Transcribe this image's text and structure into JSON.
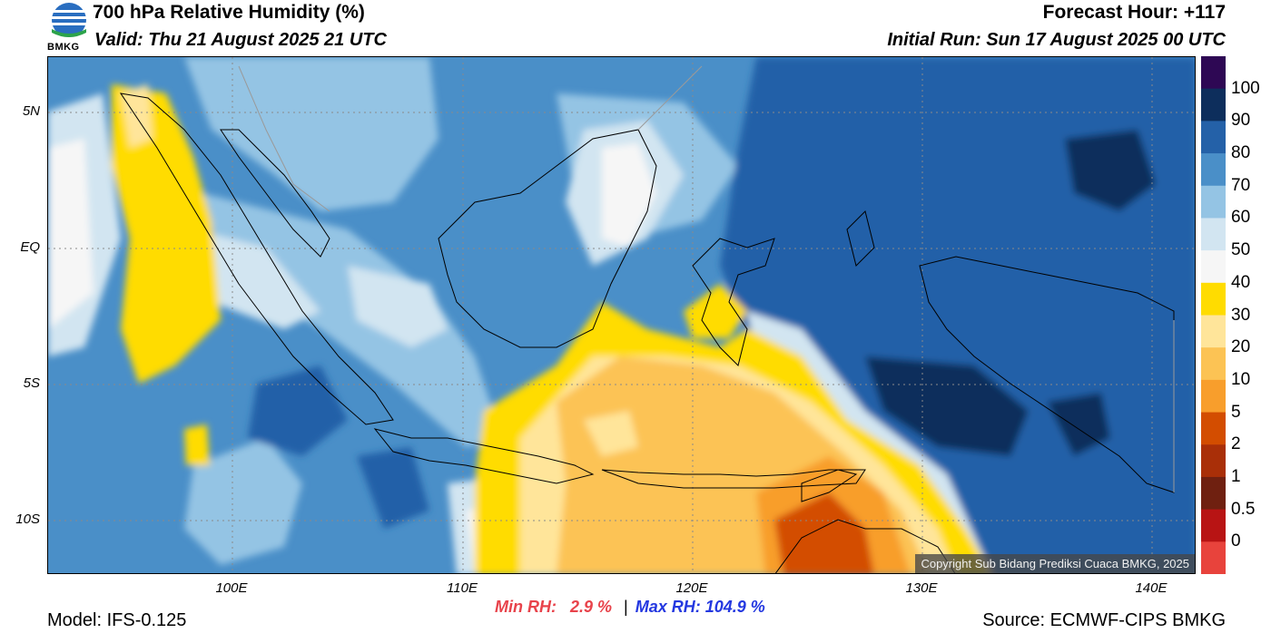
{
  "header": {
    "title": "700 hPa Relative Humidity (%)",
    "valid": "Valid: Thu 21 August 2025 21 UTC",
    "forecast_hour": "Forecast Hour: +117",
    "initial_run": "Initial Run: Sun 17 August 2025 00 UTC"
  },
  "logo": {
    "text": "BMKG"
  },
  "map": {
    "lat_labels": [
      "5N",
      "EQ",
      "5S",
      "10S"
    ],
    "lon_labels": [
      "100E",
      "110E",
      "120E",
      "130E",
      "140E"
    ],
    "copyright": "Copyright Sub Bidang Prediksi Cuaca BMKG, 2025"
  },
  "colorbar": {
    "labels": [
      "100",
      "90",
      "80",
      "70",
      "60",
      "50",
      "40",
      "30",
      "20",
      "10",
      "5",
      "2",
      "1",
      "0.5",
      "0"
    ],
    "colors": [
      "#2e0854",
      "#0d2e5c",
      "#2461a8",
      "#4a8fc8",
      "#94c4e4",
      "#d2e5f1",
      "#f6f6f6",
      "#ffdc00",
      "#ffe59a",
      "#fcc354",
      "#f89e2c",
      "#d34d00",
      "#a92f08",
      "#6f2010",
      "#b81414",
      "#e8433c"
    ]
  },
  "stats": {
    "min_label": "Min RH:",
    "min_value": "2.9 %",
    "separator": "|",
    "max_label": "Max RH: 104.9 %"
  },
  "footer": {
    "model": "Model: IFS-0.125",
    "source": "Source: ECMWF-CIPS BMKG"
  }
}
